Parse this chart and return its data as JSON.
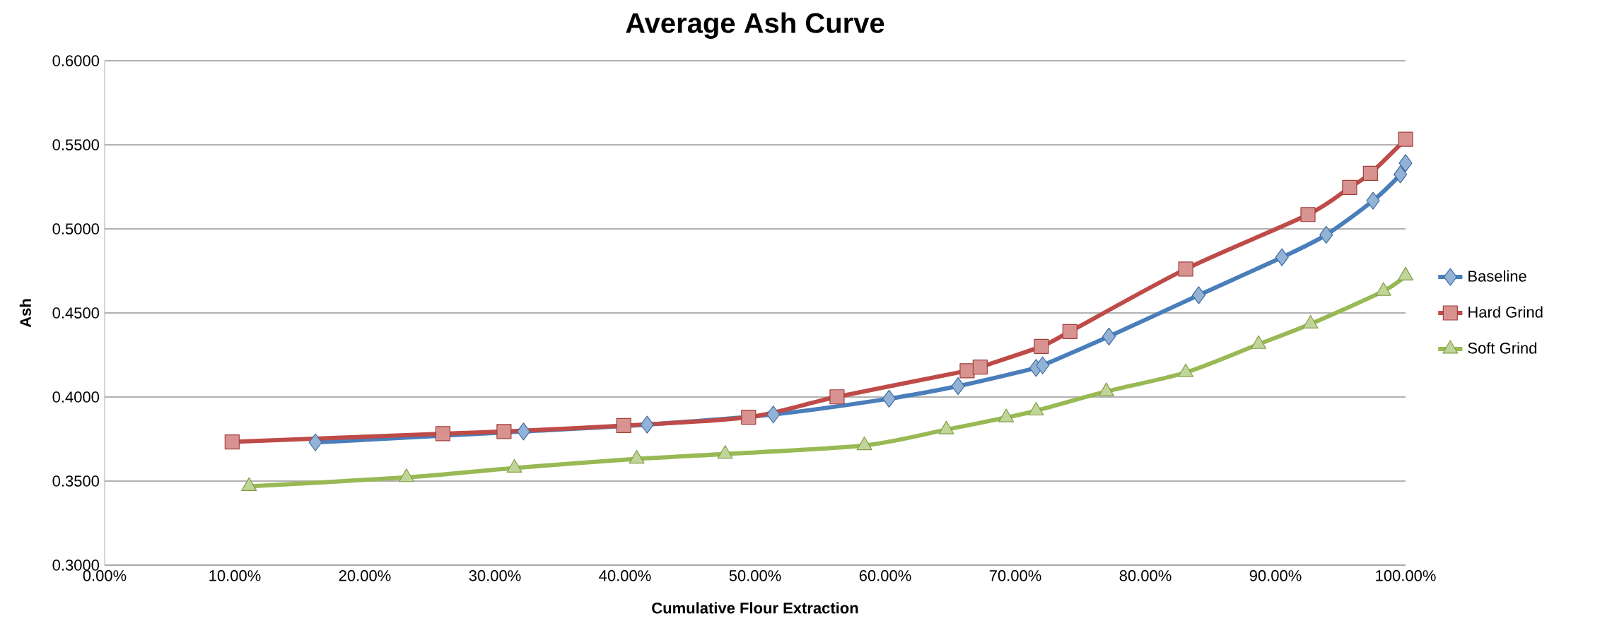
{
  "chart_data": {
    "type": "line",
    "title": "Average Ash Curve",
    "xlabel": "Cumulative Flour Extraction",
    "ylabel": "Ash",
    "xlim": [
      0,
      100
    ],
    "ylim": [
      0.3,
      0.6
    ],
    "xticks": [
      {
        "value": 0,
        "label": "0.00%"
      },
      {
        "value": 10,
        "label": "10.00%"
      },
      {
        "value": 20,
        "label": "20.00%"
      },
      {
        "value": 30,
        "label": "30.00%"
      },
      {
        "value": 40,
        "label": "40.00%"
      },
      {
        "value": 50,
        "label": "50.00%"
      },
      {
        "value": 60,
        "label": "60.00%"
      },
      {
        "value": 70,
        "label": "70.00%"
      },
      {
        "value": 80,
        "label": "80.00%"
      },
      {
        "value": 90,
        "label": "90.00%"
      },
      {
        "value": 100,
        "label": "100.00%"
      }
    ],
    "yticks": [
      {
        "value": 0.3,
        "label": "0.3000"
      },
      {
        "value": 0.35,
        "label": "0.3500"
      },
      {
        "value": 0.4,
        "label": "0.4000"
      },
      {
        "value": 0.45,
        "label": "0.4500"
      },
      {
        "value": 0.5,
        "label": "0.5000"
      },
      {
        "value": 0.55,
        "label": "0.5500"
      },
      {
        "value": 0.6,
        "label": "0.6000"
      }
    ],
    "grid": "y",
    "legend": "right",
    "line_style": "solid",
    "series": [
      {
        "name": "Baseline",
        "color": "#4a7ebb",
        "marker": "diamond",
        "x": [
          16.2,
          32.2,
          41.7,
          51.4,
          60.3,
          65.6,
          71.6,
          72.1,
          77.2,
          84.1,
          90.5,
          93.9,
          97.5,
          99.6,
          100
        ],
        "values": [
          0.373,
          0.3795,
          0.3836,
          0.3896,
          0.399,
          0.4065,
          0.4173,
          0.4188,
          0.436,
          0.4606,
          0.4831,
          0.4965,
          0.5168,
          0.5324,
          0.5391
        ]
      },
      {
        "name": "Hard Grind",
        "color": "#be4b48",
        "marker": "square",
        "x": [
          9.8,
          26.0,
          30.7,
          39.9,
          49.5,
          56.3,
          66.3,
          67.3,
          72.0,
          74.2,
          83.1,
          92.5,
          95.7,
          97.3,
          100
        ],
        "values": [
          0.3733,
          0.3782,
          0.3795,
          0.383,
          0.388,
          0.4001,
          0.4156,
          0.4178,
          0.4301,
          0.4389,
          0.4761,
          0.5085,
          0.5246,
          0.533,
          0.5533
        ]
      },
      {
        "name": "Soft Grind",
        "color": "#98b954",
        "marker": "triangle",
        "x": [
          11.1,
          23.2,
          31.5,
          40.9,
          47.7,
          58.4,
          64.7,
          69.3,
          71.6,
          77.0,
          83.1,
          88.7,
          92.7,
          98.3,
          100
        ],
        "values": [
          0.3469,
          0.3522,
          0.3578,
          0.3632,
          0.3661,
          0.3712,
          0.3806,
          0.3878,
          0.3918,
          0.4033,
          0.4146,
          0.4314,
          0.4435,
          0.463,
          0.4721
        ]
      }
    ]
  }
}
